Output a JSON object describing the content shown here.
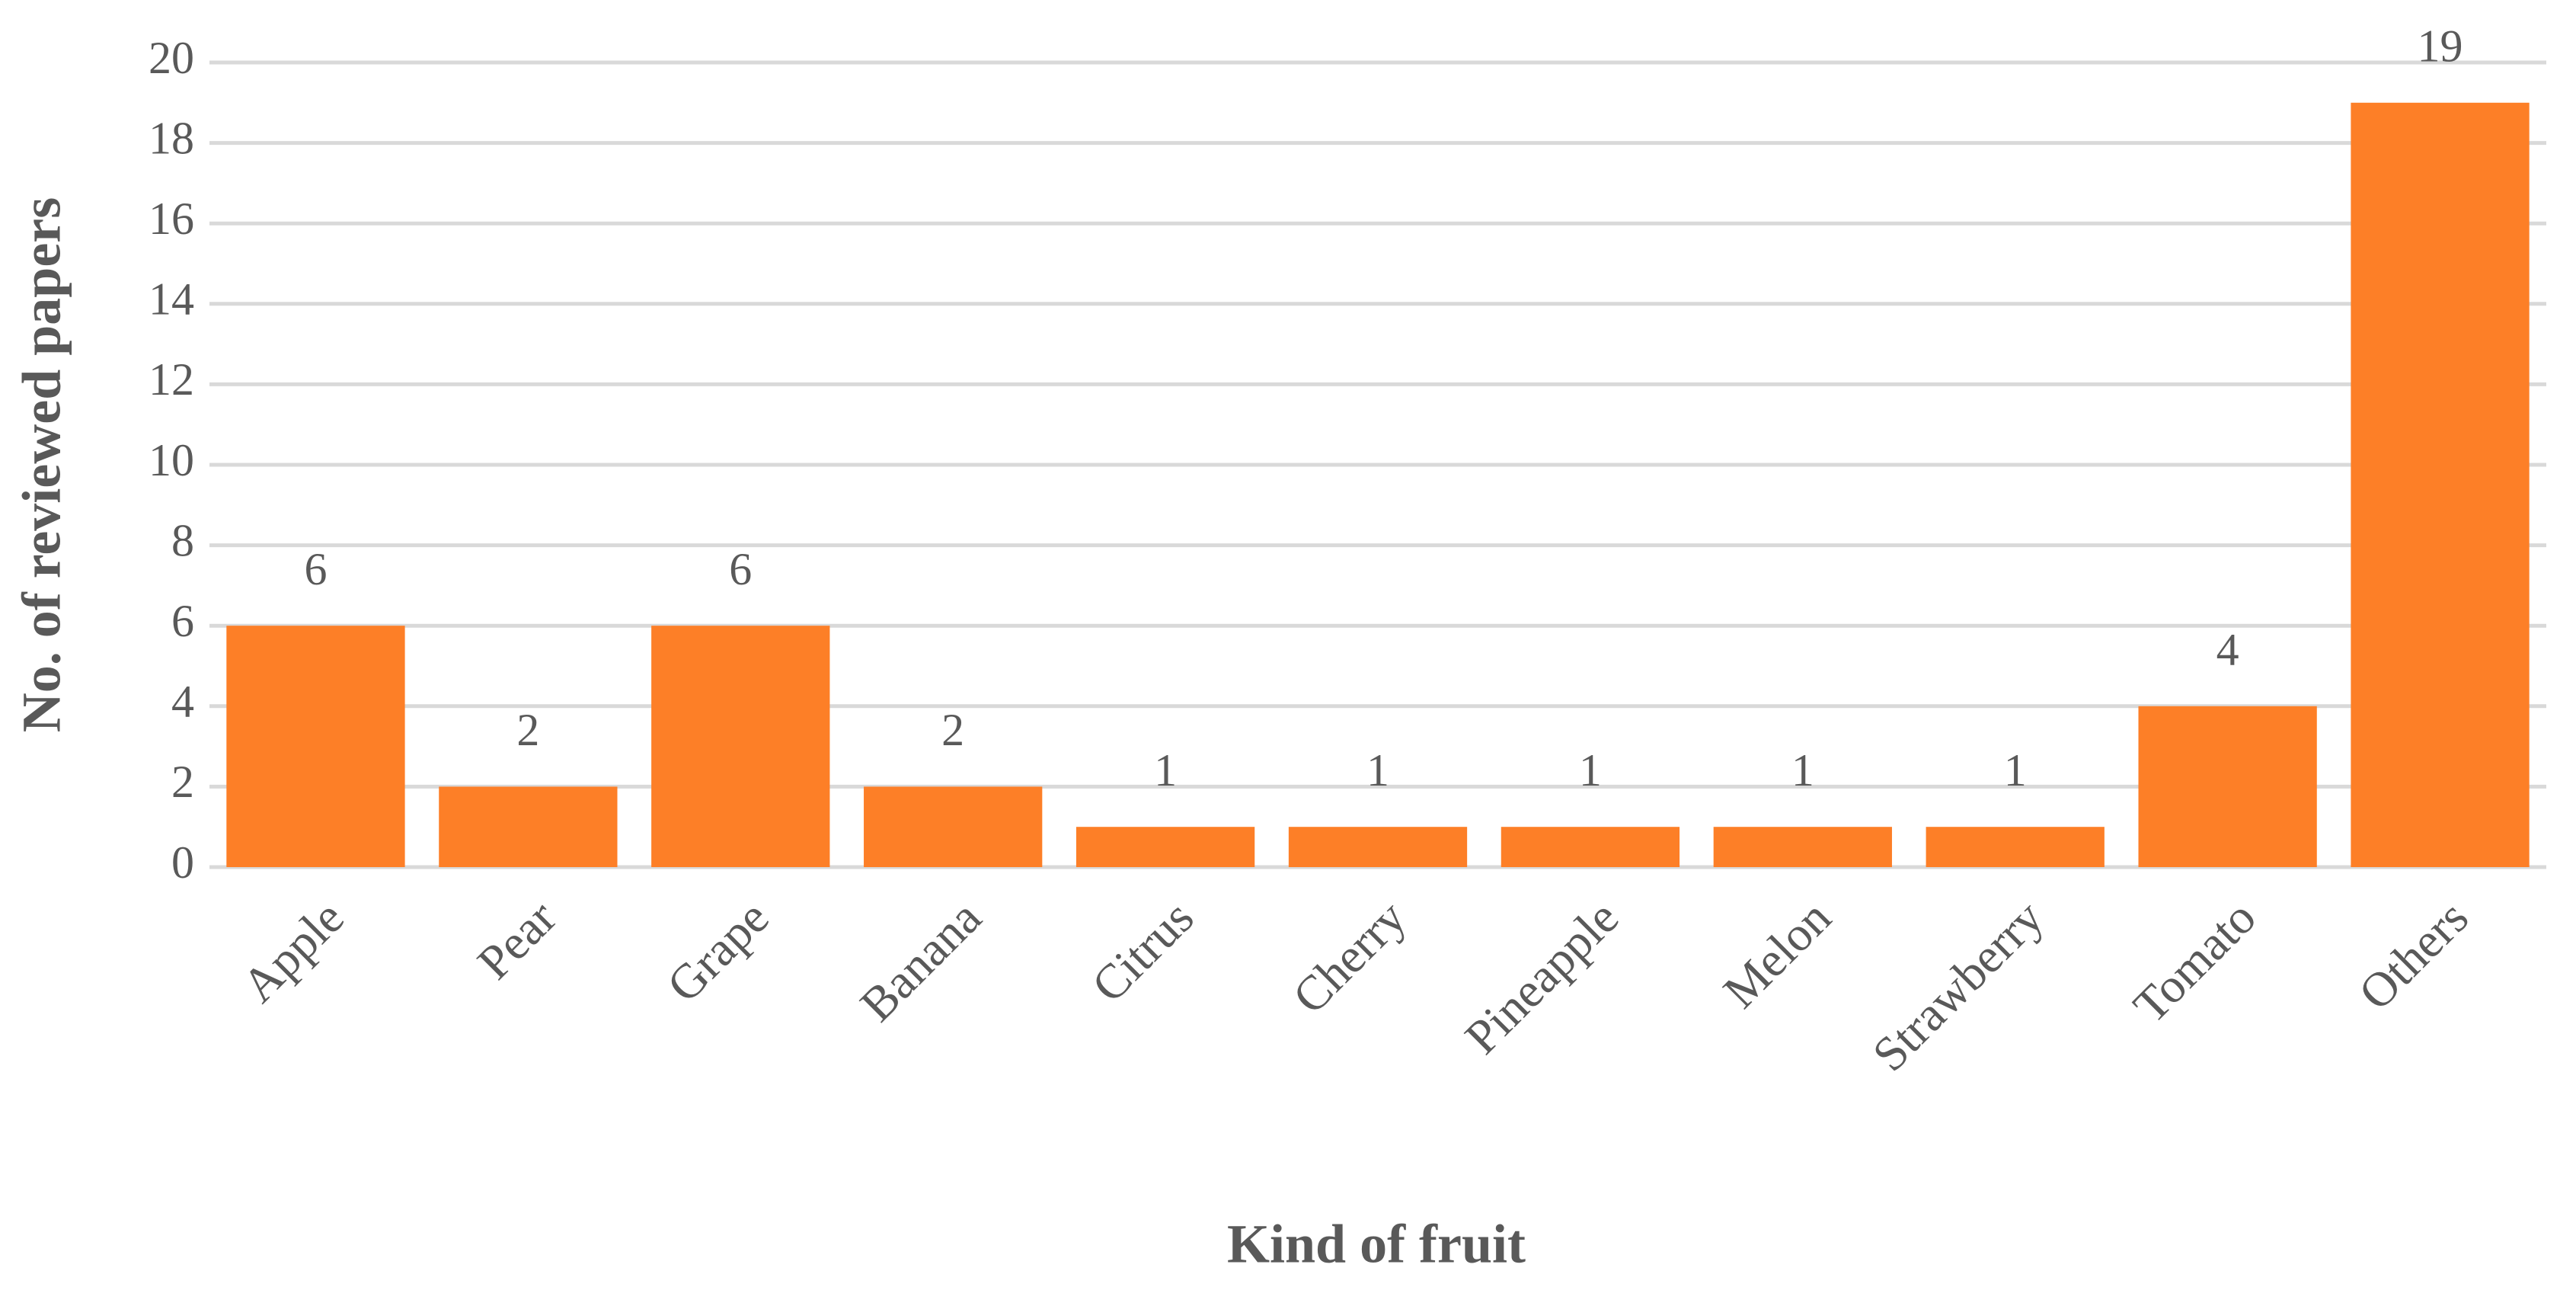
{
  "chart_data": {
    "type": "bar",
    "x_label": "Kind of fruit",
    "y_label": "No. of reviewed papers",
    "categories": [
      "Apple",
      "Pear",
      "Grape",
      "Banana",
      "Citrus",
      "Cherry",
      "Pineapple",
      "Melon",
      "Strawberry",
      "Tomato",
      "Others"
    ],
    "values": [
      6,
      2,
      6,
      2,
      1,
      1,
      1,
      1,
      1,
      4,
      19
    ],
    "color": "#fd7f27",
    "ylim": [
      0,
      20
    ],
    "yticks": [
      0,
      2,
      4,
      6,
      8,
      10,
      12,
      14,
      16,
      18,
      20
    ],
    "grid": true
  }
}
